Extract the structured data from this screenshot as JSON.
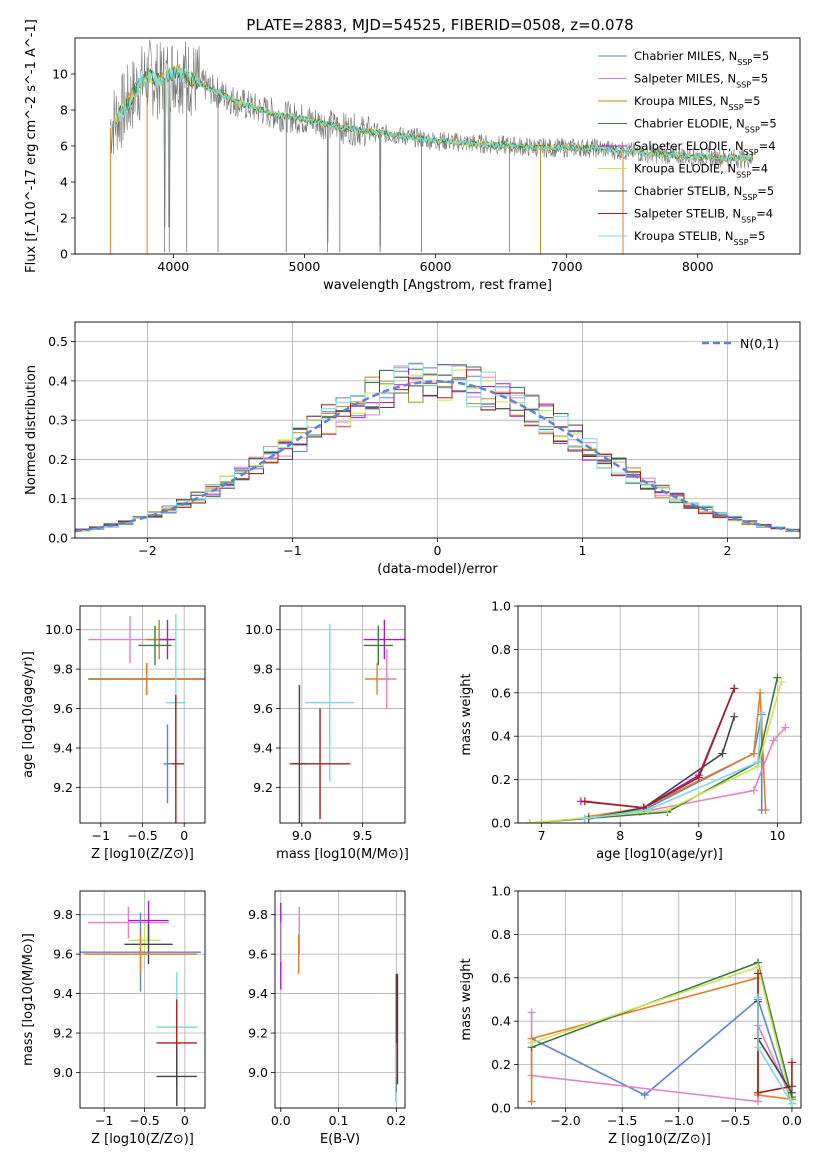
{
  "figure_title": "PLATE=2883, MJD=54525, FIBERID=0508, z=0.078",
  "colors": {
    "chabrier_miles": "#5b84d2",
    "salpeter_miles": "#e580c4",
    "kroupa_miles": "#ba8a1e",
    "chabrier_elodie": "#3e7a47",
    "salpeter_elodie": "#a020c6",
    "kroupa_elodie": "#cfe356",
    "chabrier_stelib": "#444444",
    "salpeter_stelib": "#a81e1e",
    "kroupa_stelib": "#7fd9df",
    "observed": "#777777",
    "normal_curve": "#5b84d2",
    "orange_model": "#e27f2b",
    "grid": "#b0b0b0"
  },
  "legend_series": [
    {
      "name": "Chabrier MILES, N",
      "sub": "SSP",
      "tail": "=5",
      "color_key": "chabrier_miles"
    },
    {
      "name": "Salpeter MILES, N",
      "sub": "SSP",
      "tail": "=5",
      "color_key": "salpeter_miles"
    },
    {
      "name": "Kroupa MILES, N",
      "sub": "SSP",
      "tail": "=5",
      "color_key": "kroupa_miles"
    },
    {
      "name": "Chabrier ELODIE, N",
      "sub": "SSP",
      "tail": "=5",
      "color_key": "chabrier_elodie"
    },
    {
      "name": "Salpeter ELODIE, N",
      "sub": "SSP",
      "tail": "=4",
      "color_key": "salpeter_elodie"
    },
    {
      "name": "Kroupa ELODIE, N",
      "sub": "SSP",
      "tail": "=4",
      "color_key": "kroupa_elodie"
    },
    {
      "name": "Chabrier STELIB, N",
      "sub": "SSP",
      "tail": "=5",
      "color_key": "chabrier_stelib"
    },
    {
      "name": "Salpeter STELIB, N",
      "sub": "SSP",
      "tail": "=4",
      "color_key": "salpeter_stelib"
    },
    {
      "name": "Kroupa STELIB, N",
      "sub": "SSP",
      "tail": "=5",
      "color_key": "kroupa_stelib"
    }
  ],
  "chart_data": [
    {
      "id": "spectrum",
      "type": "line",
      "xlabel": "wavelength [Angstrom, rest frame]",
      "ylabel": "Flux [f_λ10^-17 erg cm^-2 s^-1 A^-1]",
      "xlim": [
        3250,
        8780
      ],
      "ylim": [
        0,
        12
      ],
      "xticks": [
        4000,
        5000,
        6000,
        7000,
        8000
      ],
      "yticks": [
        0,
        2,
        4,
        6,
        8,
        10
      ],
      "grid": false,
      "legend": "top-right",
      "continuum": {
        "x": [
          3520,
          3620,
          3720,
          3800,
          3900,
          4000,
          4100,
          4300,
          4500,
          4800,
          5000,
          5300,
          5600,
          6000,
          6400,
          6800,
          7200,
          7600,
          8000,
          8400
        ],
        "y": [
          7.2,
          8.0,
          9.2,
          9.9,
          9.6,
          10.1,
          9.9,
          9.1,
          8.4,
          7.7,
          7.5,
          7.0,
          6.7,
          6.3,
          6.1,
          5.9,
          5.9,
          5.6,
          5.4,
          5.3
        ]
      },
      "absorption_lines": [
        3934,
        3969,
        4102,
        4341,
        4861,
        5175,
        5270,
        5577,
        5893,
        6563
      ]
    },
    {
      "id": "residuals",
      "type": "histogram",
      "xlabel": "(data-model)/error",
      "ylabel": "Normed distribution",
      "xlim": [
        -2.5,
        2.5
      ],
      "ylim": [
        0,
        0.55
      ],
      "xticks": [
        -2,
        -1,
        0,
        1,
        2
      ],
      "yticks": [
        0.0,
        0.1,
        0.2,
        0.3,
        0.4,
        0.5
      ],
      "grid": true,
      "legend": "top-right",
      "reference_label": "N(0,1)",
      "bin_width": 0.1
    },
    {
      "id": "age_vs_z",
      "type": "errorbar",
      "xlabel": "Z [log10(Z/Z⊙)]",
      "ylabel": "age [log10(age/yr)]",
      "xlim": [
        -1.25,
        0.25
      ],
      "ylim": [
        9.02,
        10.12
      ],
      "xticks": [
        -1,
        -0.5,
        0
      ],
      "xticklabels": [
        "−1",
        "−0.5",
        "0"
      ],
      "yticks": [
        9.2,
        9.4,
        9.6,
        9.8,
        10.0
      ],
      "grid": true,
      "points": [
        {
          "c": "salpeter_miles",
          "x": -0.65,
          "xe": 0.5,
          "y": 9.95,
          "ye": 0.12
        },
        {
          "c": "kroupa_miles",
          "x": -0.3,
          "xe": 0.15,
          "y": 9.95,
          "ye": 0.1
        },
        {
          "c": "salpeter_elodie",
          "x": -0.2,
          "xe": 0.1,
          "y": 9.95,
          "ye": 0.1
        },
        {
          "c": "chabrier_elodie",
          "x": -0.35,
          "xe": 0.2,
          "y": 9.92,
          "ye": 0.1
        },
        {
          "c": "chabrier_stelib",
          "x": -0.45,
          "xe": 0.7,
          "y": 9.75,
          "ye": 0.08
        },
        {
          "c": "orange_model",
          "x": -0.45,
          "xe": 0.7,
          "y": 9.75,
          "ye": 0.08
        },
        {
          "c": "kroupa_stelib",
          "x": -0.1,
          "xe": 0.12,
          "y": 9.63,
          "ye": 0.45
        },
        {
          "c": "salpeter_stelib",
          "x": -0.1,
          "xe": 0.1,
          "y": 9.32,
          "ye": 0.35
        },
        {
          "c": "chabrier_miles",
          "x": -0.2,
          "xe": 0.05,
          "y": 9.32,
          "ye": 0.2
        }
      ]
    },
    {
      "id": "age_vs_mass",
      "type": "errorbar",
      "xlabel": "mass [log10(M/M⊙)]",
      "ylabel": "",
      "xlim": [
        8.82,
        9.85
      ],
      "ylim": [
        9.02,
        10.12
      ],
      "xticks": [
        9.0,
        9.5
      ],
      "yticks": [
        9.2,
        9.4,
        9.6,
        9.8,
        10.0
      ],
      "grid": true,
      "points": [
        {
          "c": "salpeter_elodie",
          "x": 9.68,
          "xe": 0.17,
          "y": 9.95,
          "ye": 0.1
        },
        {
          "c": "chabrier_elodie",
          "x": 9.63,
          "xe": 0.12,
          "y": 9.92,
          "ye": 0.1
        },
        {
          "c": "orange_model",
          "x": 9.62,
          "xe": 0.1,
          "y": 9.75,
          "ye": 0.08
        },
        {
          "c": "salpeter_miles",
          "x": 9.7,
          "xe": 0.08,
          "y": 9.75,
          "ye": 0.15
        },
        {
          "c": "kroupa_stelib",
          "x": 9.23,
          "xe": 0.2,
          "y": 9.63,
          "ye": 0.4
        },
        {
          "c": "chabrier_stelib",
          "x": 8.98,
          "xe": 0.05,
          "y": 9.32,
          "ye": 0.4
        },
        {
          "c": "salpeter_stelib",
          "x": 9.15,
          "xe": 0.25,
          "y": 9.32,
          "ye": 0.28
        }
      ]
    },
    {
      "id": "mass_weight_vs_age",
      "type": "line",
      "xlabel": "age [log10(age/yr)]",
      "ylabel": "mass weight",
      "xlim": [
        6.7,
        10.3
      ],
      "ylim": [
        0,
        1
      ],
      "xticks": [
        7,
        8,
        9,
        10
      ],
      "yticks": [
        0.0,
        0.2,
        0.4,
        0.6,
        0.8,
        1.0
      ],
      "grid": true,
      "series": [
        {
          "c": "chabrier_miles",
          "x": [
            7.55,
            8.3,
            9.7,
            9.8,
            9.8
          ],
          "y": [
            0.02,
            0.06,
            0.32,
            0.5,
            0.06
          ]
        },
        {
          "c": "salpeter_miles",
          "x": [
            7.6,
            8.25,
            9.7,
            9.95,
            10.1
          ],
          "y": [
            0.03,
            0.05,
            0.15,
            0.38,
            0.44
          ]
        },
        {
          "c": "orange_model",
          "x": [
            7.6,
            8.3,
            9.7,
            9.78,
            9.85
          ],
          "y": [
            0.03,
            0.07,
            0.32,
            0.6,
            0.06
          ]
        },
        {
          "c": "chabrier_elodie",
          "x": [
            6.85,
            8.6,
            9.75,
            10.0
          ],
          "y": [
            0.0,
            0.05,
            0.28,
            0.67
          ]
        },
        {
          "c": "salpeter_elodie",
          "x": [
            7.5,
            8.3,
            9.0,
            9.45
          ],
          "y": [
            0.1,
            0.07,
            0.22,
            0.62
          ]
        },
        {
          "c": "kroupa_elodie",
          "x": [
            6.85,
            8.6,
            9.75,
            10.05
          ],
          "y": [
            0.0,
            0.06,
            0.26,
            0.65
          ]
        },
        {
          "c": "chabrier_stelib",
          "x": [
            7.6,
            8.3,
            9.3,
            9.45
          ],
          "y": [
            0.02,
            0.07,
            0.32,
            0.49
          ]
        },
        {
          "c": "salpeter_stelib",
          "x": [
            7.55,
            8.3,
            9.0,
            9.45
          ],
          "y": [
            0.1,
            0.07,
            0.21,
            0.62
          ]
        },
        {
          "c": "kroupa_stelib",
          "x": [
            7.55,
            8.35,
            9.75,
            9.8
          ],
          "y": [
            0.02,
            0.06,
            0.28,
            0.51
          ]
        }
      ]
    },
    {
      "id": "mass_vs_z",
      "type": "errorbar",
      "xlabel": "Z [log10(Z/Z⊙)]",
      "ylabel": "mass [log10(M/M⊙)]",
      "xlim": [
        -1.3,
        0.25
      ],
      "ylim": [
        8.82,
        9.92
      ],
      "xticks": [
        -1,
        -0.5,
        0
      ],
      "xticklabels": [
        "−1",
        "−0.5",
        "0"
      ],
      "yticks": [
        9.0,
        9.2,
        9.4,
        9.6,
        9.8
      ],
      "grid": true,
      "points": [
        {
          "c": "salpeter_miles",
          "x": -0.7,
          "xe": 0.5,
          "y": 9.76,
          "ye": 0.08
        },
        {
          "c": "salpeter_elodie",
          "x": -0.45,
          "xe": 0.25,
          "y": 9.77,
          "ye": 0.1
        },
        {
          "c": "kroupa_elodie",
          "x": -0.5,
          "xe": 0.2,
          "y": 9.67,
          "ye": 0.08
        },
        {
          "c": "chabrier_stelib",
          "x": -0.45,
          "xe": 0.3,
          "y": 9.65,
          "ye": 0.1
        },
        {
          "c": "chabrier_miles",
          "x": -0.55,
          "xe": 0.75,
          "y": 9.61,
          "ye": 0.2
        },
        {
          "c": "orange_model",
          "x": -0.55,
          "xe": 0.7,
          "y": 9.6,
          "ye": 0.1
        },
        {
          "c": "kroupa_stelib",
          "x": -0.1,
          "xe": 0.25,
          "y": 9.23,
          "ye": 0.28
        },
        {
          "c": "salpeter_stelib",
          "x": -0.1,
          "xe": 0.25,
          "y": 9.15,
          "ye": 0.22
        },
        {
          "c": "chabrier_stelib",
          "x": -0.1,
          "xe": 0.25,
          "y": 8.98,
          "ye": 0.15
        }
      ]
    },
    {
      "id": "mass_vs_ebv",
      "type": "errorbar",
      "xlabel": "E(B-V)",
      "ylabel": "",
      "xlim": [
        -0.01,
        0.215
      ],
      "ylim": [
        8.82,
        9.92
      ],
      "xticks": [
        0.0,
        0.1,
        0.2
      ],
      "yticks": [
        9.0,
        9.2,
        9.4,
        9.6,
        9.8
      ],
      "grid": true,
      "points": [
        {
          "c": "salpeter_elodie",
          "x": 0.0,
          "xe": 0,
          "y": 9.64,
          "ye": 0.22
        },
        {
          "c": "kroupa_elodie",
          "x": 0.001,
          "xe": 0,
          "y": 9.66,
          "ye": 0.1
        },
        {
          "c": "salpeter_miles",
          "x": 0.032,
          "xe": 0,
          "y": 9.72,
          "ye": 0.12
        },
        {
          "c": "orange_model",
          "x": 0.031,
          "xe": 0,
          "y": 9.6,
          "ye": 0.1
        },
        {
          "c": "chabrier_stelib",
          "x": 0.2,
          "xe": 0,
          "y": 9.2,
          "ye": 0.3
        },
        {
          "c": "salpeter_stelib",
          "x": 0.202,
          "xe": 0,
          "y": 9.22,
          "ye": 0.28
        },
        {
          "c": "kroupa_stelib",
          "x": 0.199,
          "xe": 0,
          "y": 9.0,
          "ye": 0.15
        }
      ]
    },
    {
      "id": "mass_weight_vs_z",
      "type": "line",
      "xlabel": "Z [log10(Z/Z⊙)]",
      "ylabel": "mass weight",
      "xlim": [
        -2.42,
        0.08
      ],
      "ylim": [
        0,
        1
      ],
      "xticks": [
        -2.0,
        -1.5,
        -1.0,
        -0.5,
        0.0
      ],
      "xticklabels": [
        "−2.0",
        "−1.5",
        "−1.0",
        "−0.5",
        "0.0"
      ],
      "yticks": [
        0.0,
        0.2,
        0.4,
        0.6,
        0.8,
        1.0
      ],
      "grid": true,
      "series": [
        {
          "c": "chabrier_miles",
          "x": [
            -2.3,
            -1.3,
            -0.3,
            0.0
          ],
          "y": [
            0.32,
            0.06,
            0.5,
            0.02
          ]
        },
        {
          "c": "salpeter_miles",
          "x": [
            -2.3,
            -2.3,
            -0.3,
            -0.3,
            0.0
          ],
          "y": [
            0.44,
            0.15,
            0.03,
            0.38,
            0.04
          ]
        },
        {
          "c": "orange_model",
          "x": [
            -2.3,
            -2.3,
            -0.3,
            -0.3,
            0.0
          ],
          "y": [
            0.03,
            0.32,
            0.6,
            0.06,
            0.04
          ]
        },
        {
          "c": "chabrier_elodie",
          "x": [
            -2.3,
            -0.3,
            0.0
          ],
          "y": [
            0.28,
            0.67,
            0.05
          ]
        },
        {
          "c": "kroupa_elodie",
          "x": [
            -2.3,
            -0.3,
            0.0
          ],
          "y": [
            0.3,
            0.65,
            0.02
          ]
        },
        {
          "c": "salpeter_stelib",
          "x": [
            -0.3,
            -0.3,
            0.0,
            0.0
          ],
          "y": [
            0.62,
            0.07,
            0.1,
            0.21
          ]
        },
        {
          "c": "chabrier_stelib",
          "x": [
            -0.3,
            -0.3,
            0.0
          ],
          "y": [
            0.49,
            0.32,
            0.07
          ]
        },
        {
          "c": "kroupa_stelib",
          "x": [
            -0.3,
            -0.3,
            0.0
          ],
          "y": [
            0.51,
            0.28,
            0.02
          ]
        }
      ]
    }
  ]
}
